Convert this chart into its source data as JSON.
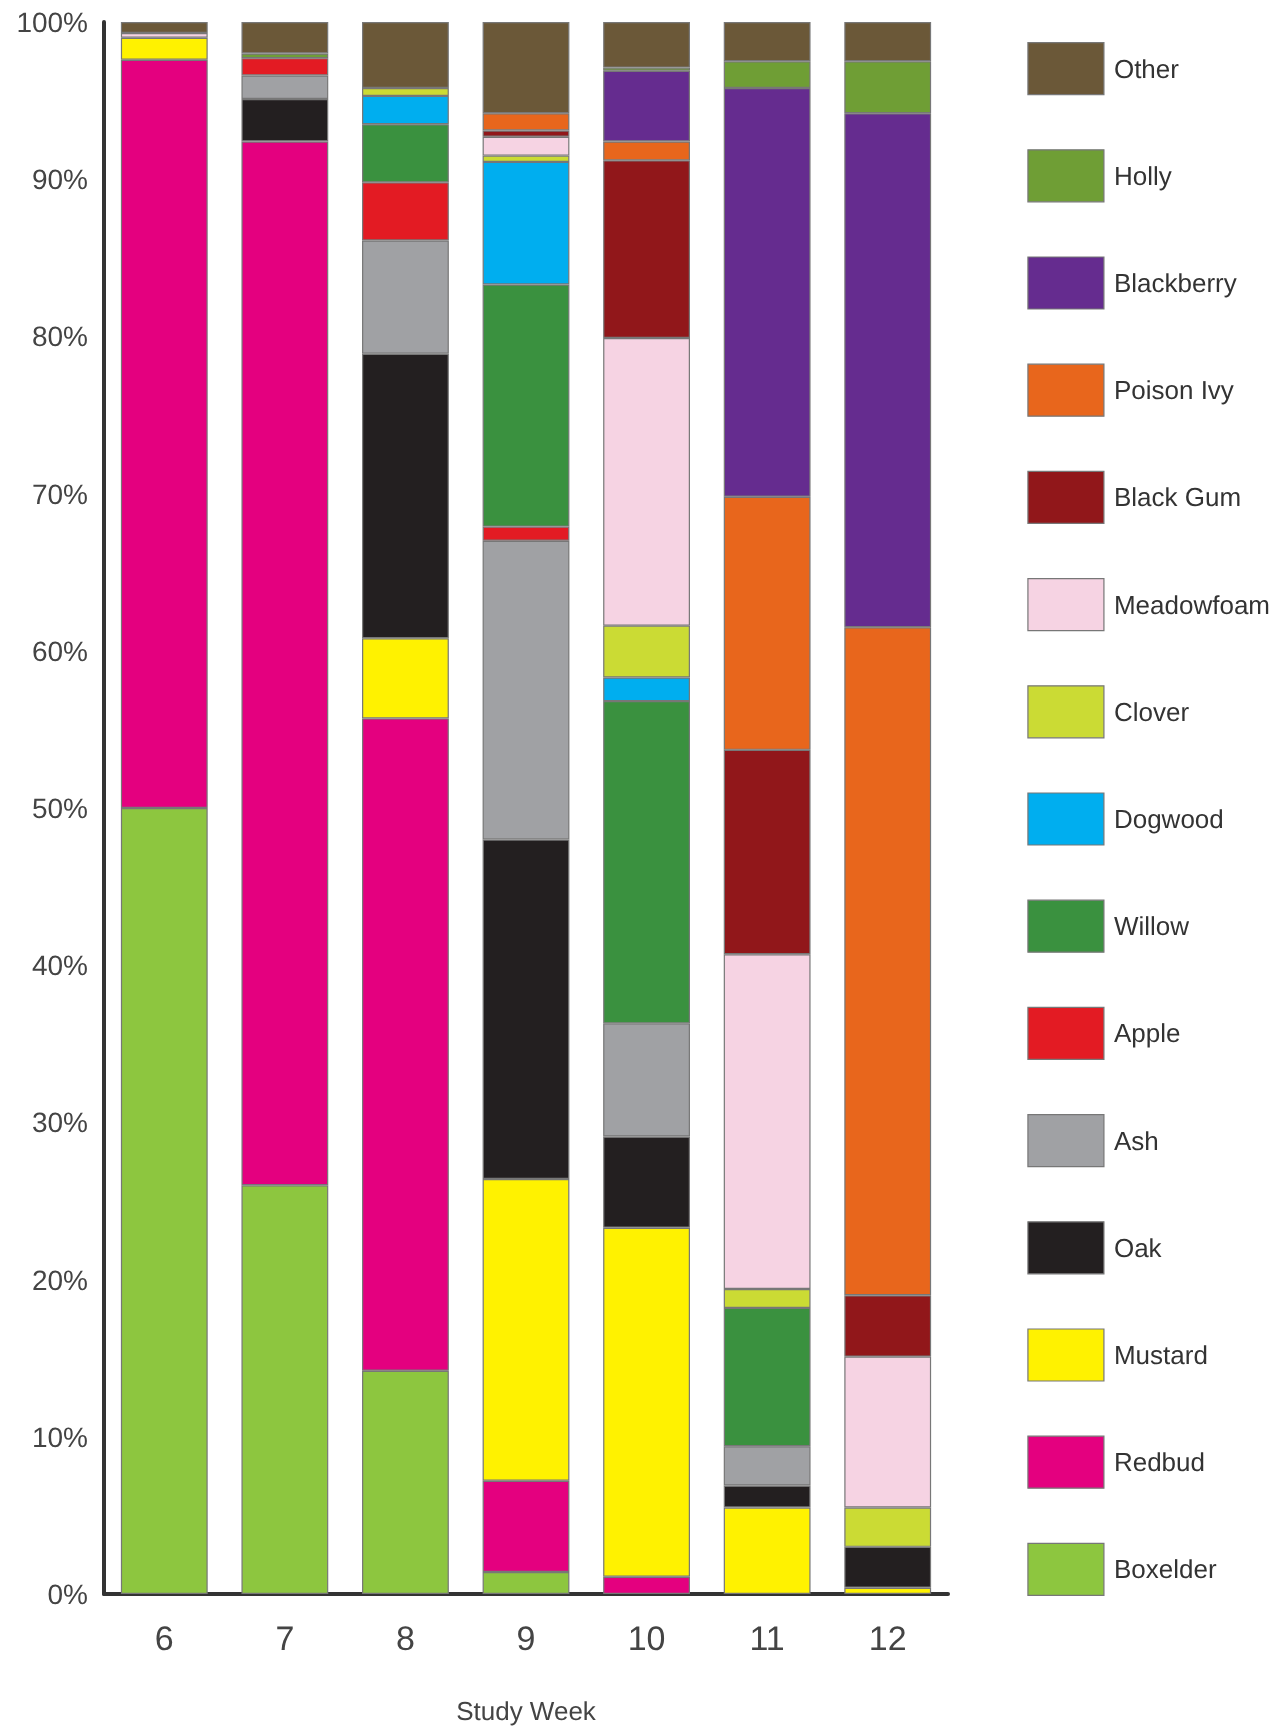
{
  "chart_data": {
    "type": "bar",
    "stacked": true,
    "xlabel": "Study Week",
    "categories": [
      "6",
      "7",
      "8",
      "9",
      "10",
      "11",
      "12"
    ],
    "ylim": [
      0,
      100
    ],
    "yticks": [
      {
        "value": 0,
        "label": "0%"
      },
      {
        "value": 10,
        "label": "10%"
      },
      {
        "value": 20,
        "label": "20%"
      },
      {
        "value": 30,
        "label": "30%"
      },
      {
        "value": 40,
        "label": "40%"
      },
      {
        "value": 50,
        "label": "50%"
      },
      {
        "value": 60,
        "label": "60%"
      },
      {
        "value": 70,
        "label": "70%"
      },
      {
        "value": 80,
        "label": "80%"
      },
      {
        "value": 90,
        "label": "90%"
      },
      {
        "value": 100,
        "label": "100%"
      }
    ],
    "grid": false,
    "legend": "right",
    "series": [
      {
        "name": "Boxelder",
        "color": "#8dc63f",
        "values": [
          50,
          26,
          14.2,
          1.4,
          null,
          null,
          null
        ]
      },
      {
        "name": "Redbud",
        "color": "#e4007f",
        "values": [
          47.6,
          66.4,
          41.5,
          5.8,
          1.1,
          null,
          null
        ]
      },
      {
        "name": "Mustard",
        "color": "#fff200",
        "values": [
          1.4,
          null,
          5.1,
          19.2,
          22.2,
          5.5,
          0.4
        ]
      },
      {
        "name": "Oak",
        "color": "#231f20",
        "values": [
          null,
          2.7,
          18.1,
          21.6,
          5.8,
          1.4,
          2.6
        ]
      },
      {
        "name": "Ash",
        "color": "#a0a1a4",
        "values": [
          null,
          1.5,
          7.2,
          19.0,
          7.2,
          2.5,
          null
        ]
      },
      {
        "name": "Apple",
        "color": "#e31b23",
        "values": [
          null,
          1.1,
          3.7,
          0.9,
          null,
          null,
          null
        ]
      },
      {
        "name": "Willow",
        "color": "#3a913f",
        "values": [
          null,
          null,
          3.7,
          15.4,
          20.5,
          8.8,
          null
        ]
      },
      {
        "name": "Dogwood",
        "color": "#00aeef",
        "values": [
          null,
          null,
          1.8,
          7.8,
          1.5,
          null,
          null
        ]
      },
      {
        "name": "Clover",
        "color": "#cbdb34",
        "values": [
          null,
          null,
          0.5,
          0.4,
          3.3,
          1.2,
          2.5
        ]
      },
      {
        "name": "Meadowfoam",
        "color": "#f6d3e3",
        "values": [
          0.3,
          null,
          null,
          1.2,
          18.3,
          21.3,
          9.6
        ]
      },
      {
        "name": "Black Gum",
        "color": "#91171a",
        "values": [
          null,
          null,
          null,
          0.4,
          11.3,
          13.0,
          3.9
        ]
      },
      {
        "name": "Poison Ivy",
        "color": "#e8661c",
        "values": [
          null,
          null,
          null,
          1.1,
          1.2,
          16.1,
          42.5
        ]
      },
      {
        "name": "Blackberry",
        "color": "#652c8f",
        "values": [
          null,
          null,
          null,
          null,
          4.5,
          26.0,
          32.7
        ]
      },
      {
        "name": "Holly",
        "color": "#6f9e35",
        "values": [
          null,
          0.3,
          null,
          null,
          0.2,
          1.7,
          3.3
        ]
      },
      {
        "name": "Other",
        "color": "#6b5838",
        "values": [
          0.7,
          2.0,
          4.2,
          5.8,
          2.9,
          2.5,
          2.5
        ]
      }
    ]
  }
}
